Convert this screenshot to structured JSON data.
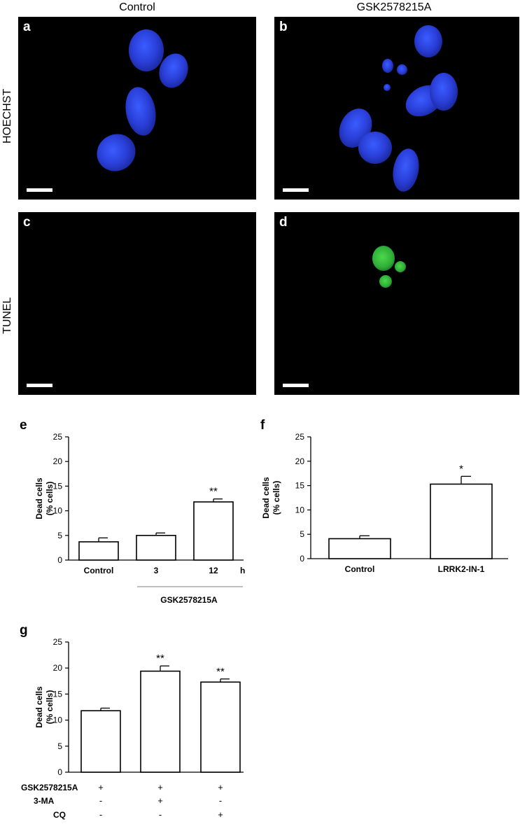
{
  "column_titles": [
    "Control",
    "GSK2578215A"
  ],
  "row_titles": [
    "HOECHST",
    "TUNEL"
  ],
  "panels": {
    "a": "a",
    "b": "b",
    "c": "c",
    "d": "d",
    "e": "e",
    "f": "f",
    "g": "g"
  },
  "colors": {
    "hoechst": "#2a3fd8",
    "tunel": "#35b83b",
    "bar_fill": "#ffffff",
    "stroke": "#000000"
  },
  "chart_data": [
    {
      "panel": "e",
      "type": "bar",
      "ylabel": [
        "Dead cells",
        "(% cells)"
      ],
      "ylim": [
        0,
        25
      ],
      "yticks": [
        0,
        5,
        10,
        15,
        20,
        25
      ],
      "categories": [
        "Control",
        "3",
        "12"
      ],
      "values": [
        3.7,
        5.0,
        11.8
      ],
      "errors": [
        0.8,
        0.5,
        0.6
      ],
      "significance": [
        "",
        "",
        "**"
      ],
      "axis_unit": "h",
      "group_label": "GSK2578215A",
      "grid": false
    },
    {
      "panel": "f",
      "type": "bar",
      "ylabel": [
        "Dead cells",
        "(% cells)"
      ],
      "ylim": [
        0,
        25
      ],
      "yticks": [
        0,
        5,
        10,
        15,
        20,
        25
      ],
      "categories": [
        "Control",
        "LRRK2-IN-1"
      ],
      "values": [
        4.1,
        15.3
      ],
      "errors": [
        0.6,
        1.6
      ],
      "significance": [
        "",
        "*"
      ],
      "grid": false
    },
    {
      "panel": "g",
      "type": "bar",
      "ylabel": [
        "Dead cells",
        "(% cells)"
      ],
      "ylim": [
        0,
        25
      ],
      "yticks": [
        0,
        5,
        10,
        15,
        20,
        25
      ],
      "categories": [
        "",
        "",
        ""
      ],
      "values": [
        11.8,
        19.4,
        17.3
      ],
      "errors": [
        0.5,
        1.0,
        0.6
      ],
      "significance": [
        "",
        "**",
        "**"
      ],
      "treatment_rows": [
        {
          "label": "GSK2578215A",
          "marks": [
            "+",
            "+",
            "+"
          ]
        },
        {
          "label": "3-MA",
          "marks": [
            "-",
            "+",
            "-"
          ]
        },
        {
          "label": "CQ",
          "marks": [
            "-",
            "-",
            "+"
          ]
        }
      ],
      "grid": false
    }
  ]
}
